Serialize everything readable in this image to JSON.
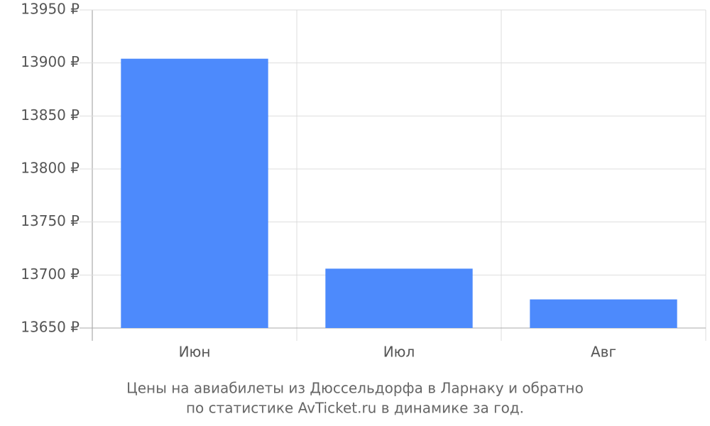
{
  "chart_data": {
    "type": "bar",
    "title": [
      "Цены на авиабилеты из Дюссельдорфа в Ларнаку и обратно",
      "по статистике AvTicket.ru в динамике за год."
    ],
    "categories": [
      "Июн",
      "Июл",
      "Авг"
    ],
    "values": [
      13904,
      13706,
      13677
    ],
    "color": "#4d8afc",
    "ylim": [
      13650,
      13950
    ],
    "yticks": [
      {
        "value": 13650,
        "label": "13650 ₽"
      },
      {
        "value": 13700,
        "label": "13700 ₽"
      },
      {
        "value": 13750,
        "label": "13750 ₽"
      },
      {
        "value": 13800,
        "label": "13800 ₽"
      },
      {
        "value": 13850,
        "label": "13850 ₽"
      },
      {
        "value": 13900,
        "label": "13900 ₽"
      },
      {
        "value": 13950,
        "label": "13950 ₽"
      }
    ],
    "grid": true
  }
}
